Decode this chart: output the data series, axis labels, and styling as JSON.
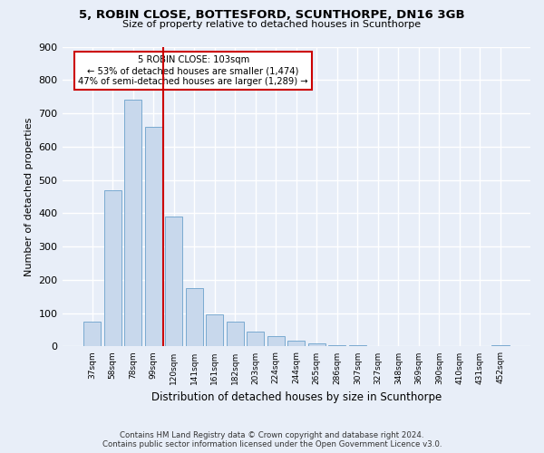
{
  "title": "5, ROBIN CLOSE, BOTTESFORD, SCUNTHORPE, DN16 3GB",
  "subtitle": "Size of property relative to detached houses in Scunthorpe",
  "xlabel": "Distribution of detached houses by size in Scunthorpe",
  "ylabel": "Number of detached properties",
  "bar_labels": [
    "37sqm",
    "58sqm",
    "78sqm",
    "99sqm",
    "120sqm",
    "141sqm",
    "161sqm",
    "182sqm",
    "203sqm",
    "224sqm",
    "244sqm",
    "265sqm",
    "286sqm",
    "307sqm",
    "327sqm",
    "348sqm",
    "369sqm",
    "390sqm",
    "410sqm",
    "431sqm",
    "452sqm"
  ],
  "bar_values": [
    75,
    470,
    740,
    660,
    390,
    175,
    97,
    75,
    45,
    32,
    18,
    10,
    5,
    3,
    2,
    1,
    1,
    0,
    0,
    0,
    5
  ],
  "bar_color": "#c8d8ec",
  "bar_edgecolor": "#7aaad0",
  "vline_color": "#cc0000",
  "vline_x": 3.5,
  "annotation_title": "5 ROBIN CLOSE: 103sqm",
  "annotation_line1": "← 53% of detached houses are smaller (1,474)",
  "annotation_line2": "47% of semi-detached houses are larger (1,289) →",
  "annotation_box_edgecolor": "#cc0000",
  "ylim": [
    0,
    900
  ],
  "yticks": [
    0,
    100,
    200,
    300,
    400,
    500,
    600,
    700,
    800,
    900
  ],
  "footer_line1": "Contains HM Land Registry data © Crown copyright and database right 2024.",
  "footer_line2": "Contains public sector information licensed under the Open Government Licence v3.0.",
  "background_color": "#e8eef8"
}
